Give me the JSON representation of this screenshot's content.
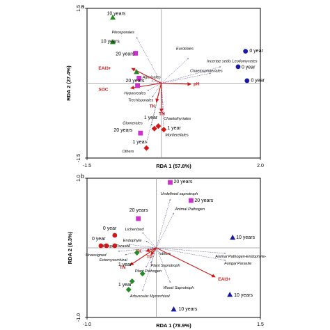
{
  "colors": {
    "env_arrow": "#d01818",
    "taxon_arrow": "#4a4a8a",
    "green": "#228b22",
    "magenta": "#cc33cc",
    "red": "#d01818",
    "blue": "#1a1aa0"
  },
  "chart_data": [
    {
      "type": "scatter",
      "panel": "a",
      "xlabel": "RDA 1 (57.8%)",
      "ylabel": "RDA 2 (27.4%)",
      "xlim": [
        -1.5,
        2.0
      ],
      "ylim": [
        -1.5,
        1.5
      ],
      "x_ticks": [
        {
          "v": -1.5,
          "label": "-1.5"
        },
        {
          "v": 2.0,
          "label": "2.0"
        }
      ],
      "y_ticks": [
        {
          "v": 1.5,
          "label": "1.5"
        },
        {
          "v": -1.5,
          "label": "-1.5"
        }
      ],
      "points": [
        {
          "x": -0.98,
          "y": 1.32,
          "marker": "triangle",
          "color": "green",
          "label": "10 years",
          "lx": -1.1,
          "ly": 1.37
        },
        {
          "x": -0.98,
          "y": 0.83,
          "marker": "triangle",
          "color": "green",
          "label": "10 years",
          "lx": -1.22,
          "ly": 0.81
        },
        {
          "x": -0.5,
          "y": 0.23,
          "marker": "triangle",
          "color": "green",
          "label": "",
          "lx": 0,
          "ly": 0
        },
        {
          "x": -0.52,
          "y": 0.6,
          "marker": "square",
          "color": "magenta",
          "label": "20 years",
          "lx": -0.92,
          "ly": 0.56
        },
        {
          "x": -0.45,
          "y": 0.1,
          "marker": "square",
          "color": "magenta",
          "label": "20 years",
          "lx": -0.72,
          "ly": 0.02
        },
        {
          "x": -0.48,
          "y": -0.05,
          "marker": "square",
          "color": "magenta",
          "label": "",
          "lx": 0,
          "ly": 0
        },
        {
          "x": -0.42,
          "y": -1.0,
          "marker": "square",
          "color": "magenta",
          "label": "20 years",
          "lx": -0.96,
          "ly": -0.97
        },
        {
          "x": -0.06,
          "y": -0.86,
          "marker": "diamond",
          "color": "red",
          "label": "1 year",
          "lx": -0.35,
          "ly": -0.72
        },
        {
          "x": -0.14,
          "y": -0.91,
          "marker": "diamond",
          "color": "red",
          "label": "",
          "lx": 0,
          "ly": 0
        },
        {
          "x": 0.05,
          "y": -0.93,
          "marker": "diamond",
          "color": "red",
          "label": "1 year",
          "lx": 0.12,
          "ly": -0.93
        },
        {
          "x": -0.3,
          "y": -1.3,
          "marker": "diamond",
          "color": "red",
          "label": "1 year",
          "lx": -0.58,
          "ly": -1.21
        },
        {
          "x": 1.7,
          "y": 0.64,
          "marker": "circle",
          "color": "blue",
          "label": "0 year",
          "lx": 1.78,
          "ly": 0.62
        },
        {
          "x": 1.55,
          "y": 0.33,
          "marker": "circle",
          "color": "blue",
          "label": "0 year",
          "lx": 1.62,
          "ly": 0.29
        },
        {
          "x": 1.73,
          "y": 0.05,
          "marker": "circle",
          "color": "blue",
          "label": "0 year",
          "lx": 1.81,
          "ly": 0.03
        }
      ],
      "taxa": [
        {
          "name": "Pleosporales",
          "x": -0.5,
          "y": 0.92,
          "lx": -1.0,
          "ly": 1.0
        },
        {
          "name": "Eurotiales",
          "x": 0.55,
          "y": 0.5,
          "lx": 0.3,
          "ly": 0.67
        },
        {
          "name": "Incertae sedis Leotiomycetes",
          "x": 1.2,
          "y": 0.33,
          "lx": 0.92,
          "ly": 0.42
        },
        {
          "name": "Chaetosphaeriales",
          "x": 1.0,
          "y": 0.2,
          "lx": 0.58,
          "ly": 0.22
        },
        {
          "name": "Agaricales",
          "x": -0.2,
          "y": 0.05,
          "lx": -0.38,
          "ly": 0.1
        },
        {
          "name": "Hypocreales",
          "x": -0.28,
          "y": -0.15,
          "lx": -0.75,
          "ly": -0.22
        },
        {
          "name": "Trechisporales",
          "x": -0.18,
          "y": -0.28,
          "lx": -0.67,
          "ly": -0.36
        },
        {
          "name": "Chaetothyriales",
          "x": 0.05,
          "y": -0.62,
          "lx": 0.05,
          "ly": -0.73
        },
        {
          "name": "Glomerales",
          "x": -0.2,
          "y": -0.85,
          "lx": -0.78,
          "ly": -0.82
        },
        {
          "name": "Mortierellales",
          "x": 0.05,
          "y": -0.95,
          "lx": 0.08,
          "ly": -1.06
        },
        {
          "name": "Others",
          "x": -0.3,
          "y": -1.2,
          "lx": -0.79,
          "ly": -1.39
        }
      ],
      "env": [
        {
          "name": "EAI3+",
          "x": -0.6,
          "y": 0.3,
          "lx": -1.27,
          "ly": 0.27
        },
        {
          "name": "SOC",
          "x": -0.62,
          "y": -0.1,
          "lx": -1.27,
          "ly": -0.15
        },
        {
          "name": "pH",
          "x": 0.6,
          "y": -0.02,
          "lx": 0.65,
          "ly": -0.04
        },
        {
          "name": "TK",
          "x": -0.1,
          "y": -0.38,
          "lx": -0.24,
          "ly": -0.49
        },
        {
          "name": "TN",
          "x": 0.0,
          "y": -0.58,
          "lx": -0.05,
          "ly": -0.64
        }
      ]
    },
    {
      "type": "scatter",
      "panel": "b",
      "xlabel": "RDA 1 (78.9%)",
      "ylabel": "RDA 2 (6.3%)",
      "xlim": [
        -1.0,
        1.5
      ],
      "ylim": [
        -1.0,
        1.0
      ],
      "x_ticks": [
        {
          "v": -1.0,
          "label": "-1.0"
        },
        {
          "v": 1.5,
          "label": "1.5"
        }
      ],
      "y_ticks": [
        {
          "v": 1.0,
          "label": "1.0"
        },
        {
          "v": -1.0,
          "label": "-1.0"
        }
      ],
      "points": [
        {
          "x": 0.2,
          "y": 0.94,
          "marker": "square",
          "color": "magenta",
          "label": "20 years",
          "lx": 0.25,
          "ly": 0.93
        },
        {
          "x": 0.5,
          "y": 0.68,
          "marker": "square",
          "color": "magenta",
          "label": "20 years",
          "lx": 0.55,
          "ly": 0.66
        },
        {
          "x": -0.26,
          "y": 0.42,
          "marker": "square",
          "color": "magenta",
          "label": "20 years",
          "lx": -0.39,
          "ly": 0.52
        },
        {
          "x": -0.6,
          "y": 0.18,
          "marker": "circle",
          "color": "red",
          "label": "0 year",
          "lx": -0.77,
          "ly": 0.26
        },
        {
          "x": -0.8,
          "y": 0.03,
          "marker": "circle",
          "color": "red",
          "label": "0 year",
          "lx": -0.93,
          "ly": 0.11
        },
        {
          "x": -0.6,
          "y": 0.03,
          "marker": "circle",
          "color": "red",
          "label": "",
          "lx": 0,
          "ly": 0
        },
        {
          "x": -0.72,
          "y": 0.03,
          "marker": "circle",
          "color": "red",
          "label": "",
          "lx": 0,
          "ly": 0
        },
        {
          "x": -0.28,
          "y": -0.07,
          "marker": "diamond",
          "color": "green",
          "label": "",
          "lx": 0,
          "ly": 0
        },
        {
          "x": -0.2,
          "y": -0.37,
          "marker": "diamond",
          "color": "green",
          "label": "1 year",
          "lx": -0.55,
          "ly": -0.26
        },
        {
          "x": -0.35,
          "y": -0.48,
          "marker": "diamond",
          "color": "green",
          "label": "1 year",
          "lx": -0.55,
          "ly": -0.55
        },
        {
          "x": -0.4,
          "y": -0.6,
          "marker": "diamond",
          "color": "green",
          "label": "",
          "lx": 0,
          "ly": 0
        },
        {
          "x": 1.1,
          "y": 0.15,
          "marker": "triangle",
          "color": "blue",
          "label": "10 years",
          "lx": 1.15,
          "ly": 0.13
        },
        {
          "x": 1.06,
          "y": -0.67,
          "marker": "triangle",
          "color": "blue",
          "label": "10 years",
          "lx": 1.12,
          "ly": -0.7
        },
        {
          "x": 0.25,
          "y": -0.88,
          "marker": "triangle",
          "color": "blue",
          "label": "10 years",
          "lx": 0.32,
          "ly": -0.9
        }
      ],
      "taxa": [
        {
          "name": "Undefined saprotroph",
          "x": 0.2,
          "y": 0.7,
          "lx": 0.06,
          "ly": 0.76
        },
        {
          "name": "Animal Pathogen",
          "x": 0.25,
          "y": 0.5,
          "lx": 0.27,
          "ly": 0.54
        },
        {
          "name": "Lichenized",
          "x": -0.2,
          "y": 0.22,
          "lx": -0.45,
          "ly": 0.25
        },
        {
          "name": "Endophyte",
          "x": -0.15,
          "y": 0.1,
          "lx": -0.48,
          "ly": 0.09
        },
        {
          "name": "Fungal Parasite",
          "x": -0.4,
          "y": 0.05,
          "lx": -0.77,
          "ly": 0.01
        },
        {
          "name": "Unassigned",
          "x": -0.55,
          "y": -0.05,
          "lx": -1.02,
          "ly": -0.12
        },
        {
          "name": "Ectomycorrhizal",
          "x": -0.45,
          "y": -0.1,
          "lx": -0.82,
          "ly": -0.19
        },
        {
          "name": "others",
          "x": 0.05,
          "y": -0.08,
          "lx": 0.05,
          "ly": -0.1
        },
        {
          "name": "Plant Saprotroph",
          "x": -0.08,
          "y": -0.22,
          "lx": -0.08,
          "ly": -0.27
        },
        {
          "name": "Plant Pathogen",
          "x": -0.15,
          "y": -0.28,
          "lx": -0.31,
          "ly": -0.35
        },
        {
          "name": "Arbuscular Mycorrhizal",
          "x": -0.2,
          "y": -0.62,
          "lx": -0.38,
          "ly": -0.71
        },
        {
          "name": "Wood Saprotroph",
          "x": 0.2,
          "y": -0.5,
          "lx": 0.1,
          "ly": -0.59
        },
        {
          "name": "Animal Pathogen-Endophyte-",
          "x": 1.0,
          "y": -0.08,
          "lx": 0.85,
          "ly": -0.14
        },
        {
          "name": "Fungal Parasite",
          "x": 1.0,
          "y": -0.18,
          "lx": 0.98,
          "ly": -0.24
        }
      ],
      "env": [
        {
          "name": "TK",
          "x": -0.15,
          "y": -0.05,
          "lx": -0.3,
          "ly": -0.07
        },
        {
          "name": "TP",
          "x": -0.08,
          "y": -0.1,
          "lx": -0.14,
          "ly": -0.15
        },
        {
          "name": "TN",
          "x": -0.38,
          "y": -0.25,
          "lx": -0.53,
          "ly": -0.3
        },
        {
          "name": "EAI3+",
          "x": 0.85,
          "y": -0.42,
          "lx": 0.89,
          "ly": -0.47
        }
      ]
    }
  ]
}
